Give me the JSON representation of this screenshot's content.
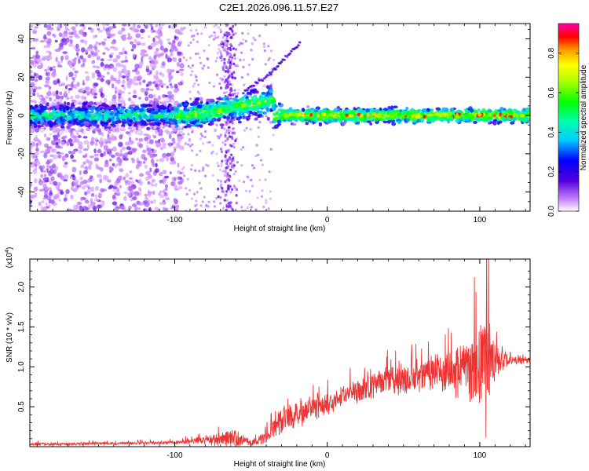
{
  "title": "C2E1.2026.096.11.57.E27",
  "chart_data": [
    {
      "type": "heatmap",
      "name": "spectrogram",
      "xlabel": "Height of straight line (km)",
      "ylabel": "Frequency (Hz)",
      "xlim": [
        -195,
        133
      ],
      "ylim": [
        -50,
        48
      ],
      "xticks": [
        -100,
        0,
        100
      ],
      "yticks": [
        -40,
        -20,
        0,
        20,
        40
      ],
      "band": {
        "x_start": -195,
        "x_end": 133,
        "center_hz": 0,
        "half_width_hz": 3
      },
      "drift": {
        "x": [
          -55,
          -40,
          -30,
          -18
        ],
        "y": [
          12,
          20,
          28,
          38
        ]
      },
      "spike_band_x": [
        -72,
        -58
      ],
      "colorbar": {
        "label": "Normalized spectral amplitude",
        "range": [
          0.0,
          0.95
        ],
        "ticks": [
          0.0,
          0.2,
          0.4,
          0.6,
          0.8
        ],
        "tick_labels": [
          "0.0",
          "0.2",
          "0.4",
          "0.6",
          "0.8"
        ]
      }
    },
    {
      "type": "line",
      "name": "snr",
      "xlabel": "Height of straight line (km)",
      "ylabel": "SNR (10 * v/v)",
      "multiplier_base": "(x10",
      "multiplier_exp": "4",
      "multiplier_close": ")",
      "xlim": [
        -195,
        133
      ],
      "ylim": [
        0,
        2.35
      ],
      "xticks": [
        -100,
        0,
        100
      ],
      "yticks": [
        0.5,
        1.0,
        1.5,
        2.0
      ],
      "ytick_labels": [
        "0.5",
        "1.0",
        "1.5",
        "2.0"
      ],
      "color": "#ee3333",
      "envelope": {
        "x": [
          -195,
          -100,
          -80,
          -60,
          -50,
          -40,
          -30,
          -20,
          0,
          20,
          40,
          60,
          80,
          95,
          100,
          105,
          110,
          120,
          133
        ],
        "mean": [
          0.03,
          0.05,
          0.08,
          0.1,
          0.05,
          0.12,
          0.35,
          0.38,
          0.55,
          0.7,
          0.82,
          0.88,
          0.95,
          1.0,
          1.0,
          1.05,
          1.1,
          1.08,
          1.08
        ],
        "spread": [
          0.02,
          0.02,
          0.05,
          0.12,
          0.04,
          0.08,
          0.18,
          0.15,
          0.15,
          0.15,
          0.18,
          0.2,
          0.3,
          0.4,
          0.55,
          0.9,
          0.25,
          0.05,
          0.04
        ]
      },
      "peaks": {
        "x": [
          104.5,
          96.5,
          104.0
        ],
        "y": [
          2.35,
          2.12,
          0.12
        ]
      }
    }
  ]
}
